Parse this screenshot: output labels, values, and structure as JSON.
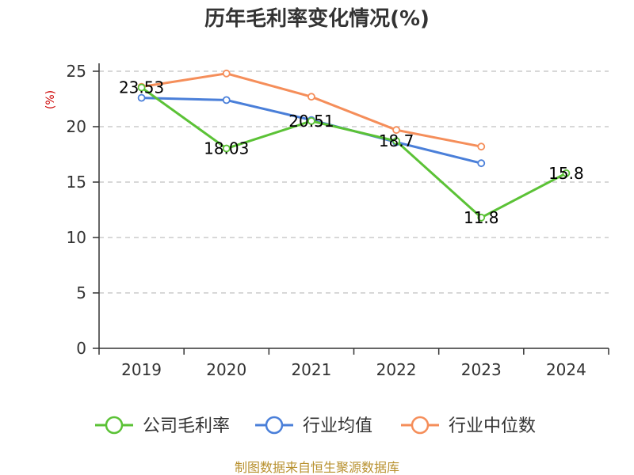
{
  "chart_data": {
    "type": "line",
    "title": "历年毛利率变化情况(%)",
    "ylabel": "(%)",
    "xlabel": "",
    "categories": [
      "2019",
      "2020",
      "2021",
      "2022",
      "2023",
      "2024"
    ],
    "ylim": [
      0,
      25
    ],
    "yticks": [
      0,
      5,
      10,
      15,
      20,
      25
    ],
    "grid": "horizontal-dashed",
    "legend_position": "bottom",
    "series": [
      {
        "name": "公司毛利率",
        "color": "#5bc236",
        "values": [
          23.53,
          18.03,
          20.51,
          18.7,
          11.8,
          15.8
        ],
        "labels": [
          "23.53",
          "18.03",
          "20.51",
          "18.7",
          "11.8",
          "15.8"
        ]
      },
      {
        "name": "行业均值",
        "color": "#4a7fd9",
        "values": [
          22.6,
          22.4,
          20.6,
          18.6,
          16.7,
          null
        ]
      },
      {
        "name": "行业中位数",
        "color": "#f58e5a",
        "values": [
          23.6,
          24.8,
          22.7,
          19.7,
          18.2,
          null
        ]
      }
    ]
  },
  "source": "制图数据来自恒生聚源数据库"
}
